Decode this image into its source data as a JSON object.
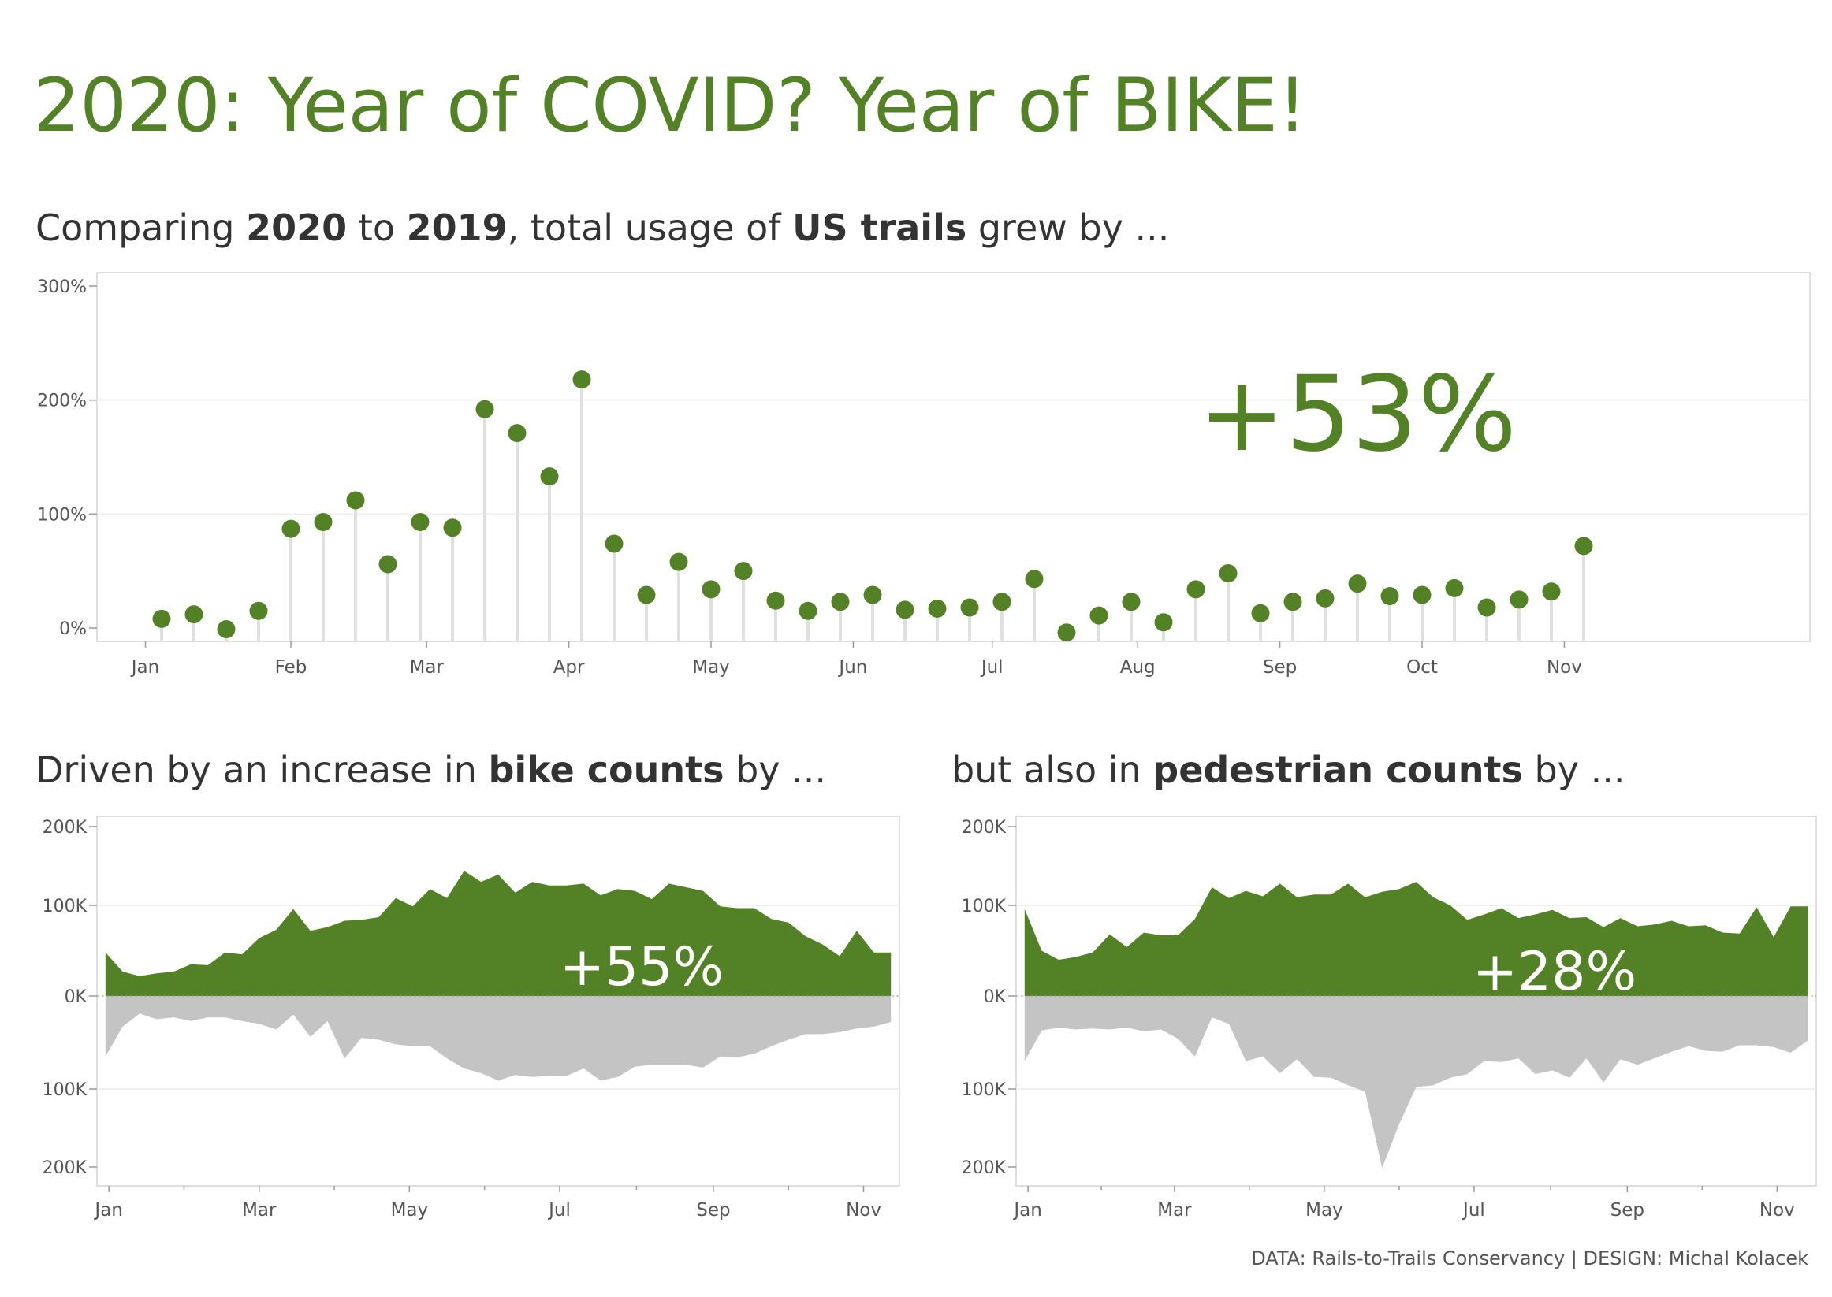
{
  "title": "2020: Year of COVID? Year of BIKE!",
  "subtitle_main": {
    "a": "Comparing ",
    "b": "2020",
    "c": " to ",
    "d": "2019",
    "e": ", total usage of ",
    "f": "US trails",
    "g": " grew by ..."
  },
  "subtitle_bike": {
    "a": "Driven by an increase in ",
    "b": "bike counts",
    "c": " by ..."
  },
  "subtitle_ped": {
    "a": "but also in ",
    "b": "pedestrian counts",
    "c": " by ..."
  },
  "footer": "DATA: Rails-to-Trails Conservancy | DESIGN: Michal Kolacek",
  "colors": {
    "accent": "#538126",
    "gray": "#c4c4c4",
    "stem": "#e0e0e0",
    "axis": "#bbbbbb"
  },
  "chart_data": [
    {
      "type": "lollipop",
      "big_label": "+53%",
      "ylim": [
        -10,
        300
      ],
      "yticks": [
        {
          "v": 0,
          "label": "0%"
        },
        {
          "v": 100,
          "label": "100%"
        },
        {
          "v": 200,
          "label": "200%"
        },
        {
          "v": 300,
          "label": "300%"
        }
      ],
      "xlim": [
        1,
        54
      ],
      "xticks": [
        {
          "v": 2.5,
          "label": "Jan"
        },
        {
          "v": 7,
          "label": "Feb"
        },
        {
          "v": 11.2,
          "label": "Mar"
        },
        {
          "v": 15.6,
          "label": "Apr"
        },
        {
          "v": 20,
          "label": "May"
        },
        {
          "v": 24.4,
          "label": "Jun"
        },
        {
          "v": 28.7,
          "label": "Jul"
        },
        {
          "v": 33.2,
          "label": "Aug"
        },
        {
          "v": 37.6,
          "label": "Sep"
        },
        {
          "v": 42,
          "label": "Oct"
        },
        {
          "v": 46.4,
          "label": "Nov"
        }
      ],
      "x": [
        3,
        4,
        5,
        6,
        7,
        8,
        9,
        10,
        11,
        12,
        13,
        14,
        15,
        16,
        17,
        18,
        19,
        20,
        21,
        22,
        23,
        24,
        25,
        26,
        27,
        28,
        29,
        30,
        31,
        32,
        33,
        34,
        35,
        36,
        37,
        38,
        39,
        40,
        41,
        42,
        43,
        44,
        45,
        46,
        47
      ],
      "values": [
        8,
        12,
        -1,
        15,
        87,
        93,
        112,
        56,
        93,
        88,
        192,
        171,
        133,
        218,
        74,
        29,
        58,
        34,
        50,
        24,
        15,
        23,
        29,
        16,
        17,
        18,
        23,
        43,
        -4,
        11,
        23,
        5,
        34,
        48,
        13,
        23,
        26,
        39,
        28,
        29,
        35,
        18,
        25,
        32,
        72
      ]
    },
    {
      "type": "area",
      "big_label": "+55%",
      "ylim": [
        -200,
        200
      ],
      "yticks": [
        {
          "v": 200,
          "label": "200K"
        },
        {
          "v": 100,
          "label": "100K"
        },
        {
          "v": 0,
          "label": "0K"
        },
        {
          "v": -100,
          "label": "100K"
        },
        {
          "v": -200,
          "label": "200K"
        }
      ],
      "xlim": [
        0.5,
        47.5
      ],
      "xticks": [
        {
          "v": 1.2,
          "label": "Jan"
        },
        {
          "v": 10,
          "label": "Mar"
        },
        {
          "v": 18.8,
          "label": "May"
        },
        {
          "v": 27.6,
          "label": "Jul"
        },
        {
          "v": 36.6,
          "label": "Sep"
        },
        {
          "v": 45.4,
          "label": "Nov"
        }
      ],
      "x": [
        1,
        2,
        3,
        4,
        5,
        6,
        7,
        8,
        9,
        10,
        11,
        12,
        13,
        14,
        15,
        16,
        17,
        18,
        19,
        20,
        21,
        22,
        23,
        24,
        25,
        26,
        27,
        28,
        29,
        30,
        31,
        32,
        33,
        34,
        35,
        36,
        37,
        38,
        39,
        40,
        41,
        42,
        43,
        44,
        45,
        46,
        47
      ],
      "series": [
        {
          "name": "2020",
          "values": [
            48,
            27,
            22,
            25,
            27,
            35,
            34,
            48,
            46,
            64,
            73,
            96,
            72,
            76,
            83,
            84,
            87,
            108,
            99,
            118,
            108,
            138,
            126,
            134,
            114,
            126,
            122,
            122,
            124,
            111,
            118,
            116,
            107,
            124,
            120,
            116,
            99,
            97,
            97,
            85,
            81,
            66,
            57,
            44,
            72,
            48,
            48
          ]
        },
        {
          "name": "2019",
          "values": [
            65,
            33,
            19,
            25,
            23,
            27,
            23,
            23,
            27,
            30,
            36,
            20,
            44,
            27,
            67,
            45,
            47,
            52,
            54,
            54,
            67,
            78,
            83,
            91,
            85,
            87,
            86,
            86,
            78,
            91,
            87,
            76,
            74,
            74,
            74,
            77,
            65,
            66,
            62,
            54,
            47,
            41,
            41,
            39,
            35,
            33,
            28
          ]
        }
      ]
    },
    {
      "type": "area",
      "big_label": "+28%",
      "ylim": [
        -200,
        200
      ],
      "yticks": [
        {
          "v": 200,
          "label": "200K"
        },
        {
          "v": 100,
          "label": "100K"
        },
        {
          "v": 0,
          "label": "0K"
        },
        {
          "v": -100,
          "label": "100K"
        },
        {
          "v": -200,
          "label": "200K"
        }
      ],
      "xlim": [
        0.5,
        47.5
      ],
      "xticks": [
        {
          "v": 1.2,
          "label": "Jan"
        },
        {
          "v": 9.8,
          "label": "Mar"
        },
        {
          "v": 18.6,
          "label": "May"
        },
        {
          "v": 27.4,
          "label": "Jul"
        },
        {
          "v": 36.4,
          "label": "Sep"
        },
        {
          "v": 45.2,
          "label": "Nov"
        }
      ],
      "x": [
        1,
        2,
        3,
        4,
        5,
        6,
        7,
        8,
        9,
        10,
        11,
        12,
        13,
        14,
        15,
        16,
        17,
        18,
        19,
        20,
        21,
        22,
        23,
        24,
        25,
        26,
        27,
        28,
        29,
        30,
        31,
        32,
        33,
        34,
        35,
        36,
        37,
        38,
        39,
        40,
        41,
        42,
        43,
        44,
        45,
        46,
        47
      ],
      "series": [
        {
          "name": "2020",
          "values": [
            96,
            50,
            40,
            43,
            48,
            68,
            54,
            70,
            67,
            67,
            85,
            120,
            108,
            116,
            110,
            124,
            109,
            112,
            112,
            124,
            109,
            115,
            118,
            126,
            109,
            100,
            84,
            90,
            97,
            86,
            90,
            95,
            86,
            87,
            76,
            86,
            77,
            79,
            83,
            77,
            78,
            70,
            69,
            98,
            65,
            99,
            99
          ]
        },
        {
          "name": "2019",
          "values": [
            70,
            37,
            34,
            36,
            35,
            36,
            34,
            38,
            36,
            46,
            65,
            23,
            30,
            70,
            65,
            83,
            68,
            87,
            88,
            96,
            103,
            185,
            138,
            98,
            96,
            88,
            84,
            70,
            71,
            67,
            84,
            80,
            88,
            67,
            93,
            68,
            74,
            67,
            60,
            54,
            59,
            60,
            53,
            53,
            55,
            61,
            48
          ]
        }
      ]
    }
  ]
}
